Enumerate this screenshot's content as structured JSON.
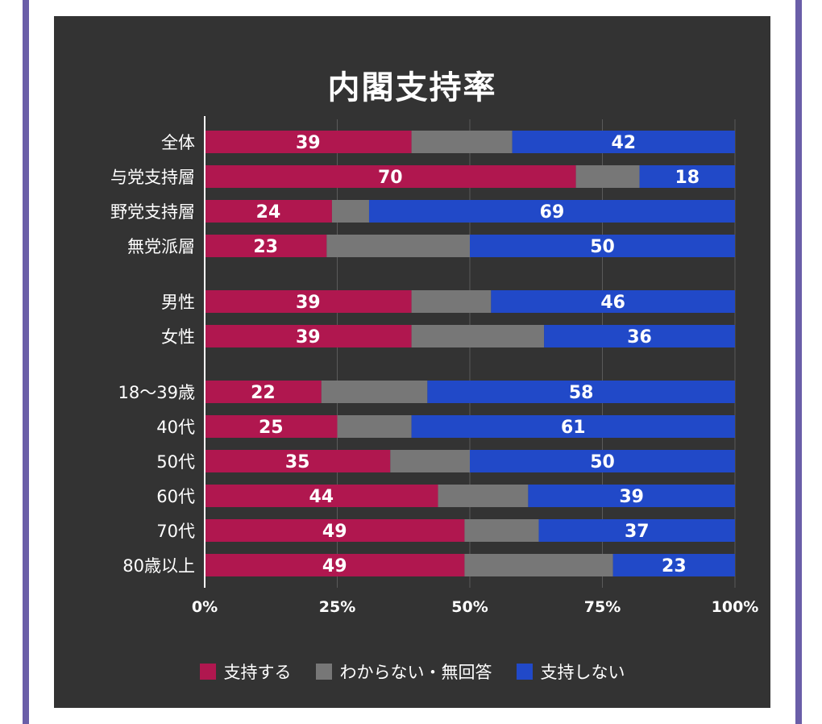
{
  "frame": {
    "color": "#6a5ea8"
  },
  "panel": {
    "background": "#333333"
  },
  "chart_data": {
    "type": "bar",
    "orientation": "horizontal",
    "stacked": true,
    "normalized_percent": true,
    "title": "内閣支持率",
    "categories": [
      "全体",
      "与党支持層",
      "野党支持層",
      "無党派層",
      "男性",
      "女性",
      "18〜39歳",
      "40代",
      "50代",
      "60代",
      "70代",
      "80歳以上"
    ],
    "groups": [
      [
        0,
        1,
        2,
        3
      ],
      [
        4,
        5
      ],
      [
        6,
        7,
        8,
        9,
        10,
        11
      ]
    ],
    "series": [
      {
        "name": "支持する",
        "color": "#b0174f",
        "values": [
          39,
          70,
          24,
          23,
          39,
          39,
          22,
          25,
          35,
          44,
          49,
          49
        ]
      },
      {
        "name": "わからない・無回答",
        "color": "#777777",
        "values": [
          19,
          12,
          7,
          27,
          15,
          25,
          20,
          14,
          15,
          17,
          14,
          28
        ]
      },
      {
        "name": "支持しない",
        "color": "#2149c8",
        "values": [
          42,
          18,
          69,
          50,
          46,
          36,
          58,
          61,
          50,
          39,
          37,
          23
        ]
      }
    ],
    "labeled_series": [
      "支持する",
      "支持しない"
    ],
    "x_ticks": [
      "0%",
      "25%",
      "50%",
      "75%",
      "100%"
    ],
    "xlim": [
      0,
      100
    ],
    "grid": true,
    "legend_position": "bottom"
  }
}
